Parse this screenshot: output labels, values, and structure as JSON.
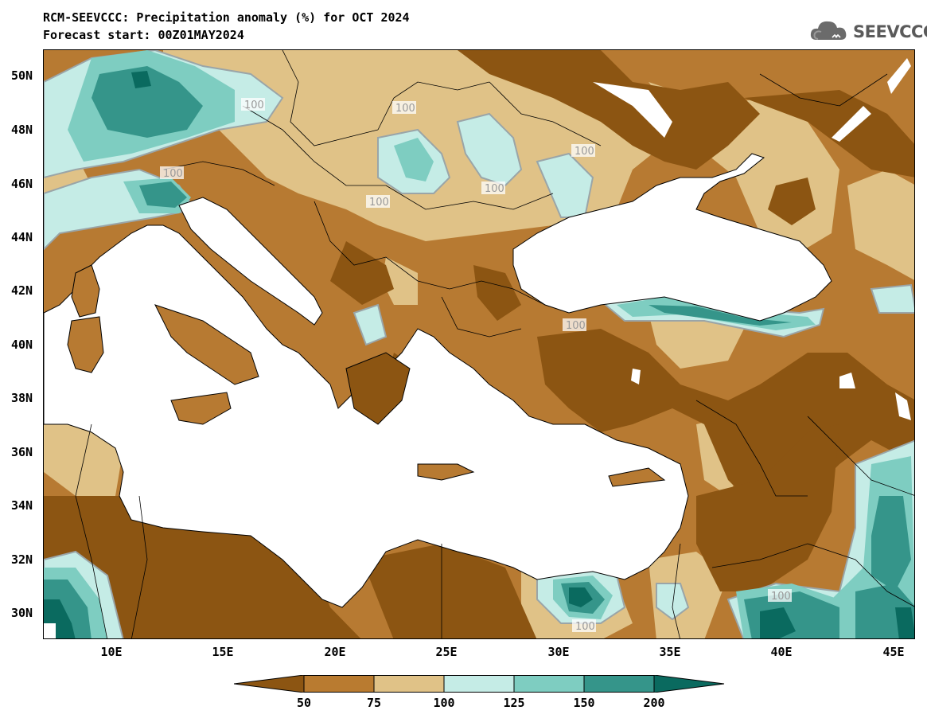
{
  "title": {
    "line1": "RCM-SEEVCCC: Precipitation anomaly (%) for OCT 2024",
    "line2": "Forecast start: 00Z01MAY2024"
  },
  "logo": {
    "text": "SEEVCCC",
    "icon": "cloud-icon"
  },
  "lat_ticks": [
    "50N",
    "48N",
    "46N",
    "44N",
    "42N",
    "40N",
    "38N",
    "36N",
    "34N",
    "32N",
    "30N"
  ],
  "lon_ticks": [
    "10E",
    "15E",
    "20E",
    "25E",
    "30E",
    "35E",
    "40E",
    "45E"
  ],
  "colorbar": {
    "labels": [
      "50",
      "75",
      "100",
      "125",
      "150",
      "200"
    ],
    "colors": [
      "#8c5512",
      "#b97b30",
      "#e0c287",
      "#c5ece6",
      "#7ecdc1",
      "#35958a",
      "#0a6a5f"
    ]
  },
  "contour_label": "100",
  "colors": {
    "very_dry": "#8c5512",
    "dry": "#b97b30",
    "slightly_dry": "#e0c287",
    "slightly_wet": "#c5ece6",
    "wet": "#7ecdc1",
    "very_wet": "#35958a",
    "extreme_wet": "#0a6a5f",
    "sea": "#ffffff",
    "contour_100": "#9aa5a8"
  }
}
